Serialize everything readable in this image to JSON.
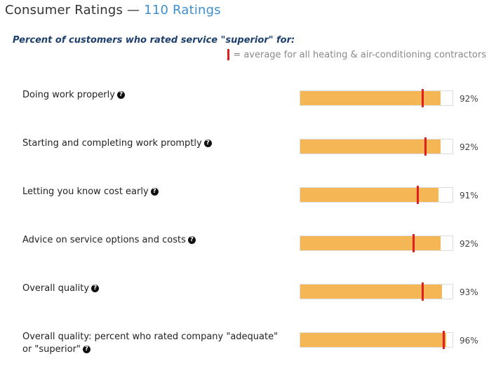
{
  "header": {
    "title": "Consumer Ratings",
    "separator": "—",
    "count": "110 Ratings"
  },
  "subtitle": "Percent of customers who rated service \"superior\" for:",
  "legend": {
    "text": "= average for all heating & air-conditioning contractors"
  },
  "help_icon": "?",
  "colors": {
    "bar_fill": "#f5b656",
    "average_marker": "#e01e1e",
    "count_link": "#3f8fcf"
  },
  "ratings": [
    {
      "label": "Doing work properly",
      "percent_label": "92%",
      "value": 92,
      "average": 80
    },
    {
      "label": "Starting and completing work promptly",
      "percent_label": "92%",
      "value": 92,
      "average": 82
    },
    {
      "label": "Letting you know cost early",
      "percent_label": "91%",
      "value": 91,
      "average": 77
    },
    {
      "label": "Advice on service options and costs",
      "percent_label": "92%",
      "value": 92,
      "average": 74
    },
    {
      "label": "Overall quality",
      "percent_label": "93%",
      "value": 93,
      "average": 80
    },
    {
      "label": "Overall quality: percent who rated company \"adequate\" or \"superior\"",
      "percent_label": "96%",
      "value": 96,
      "average": 94
    }
  ]
}
